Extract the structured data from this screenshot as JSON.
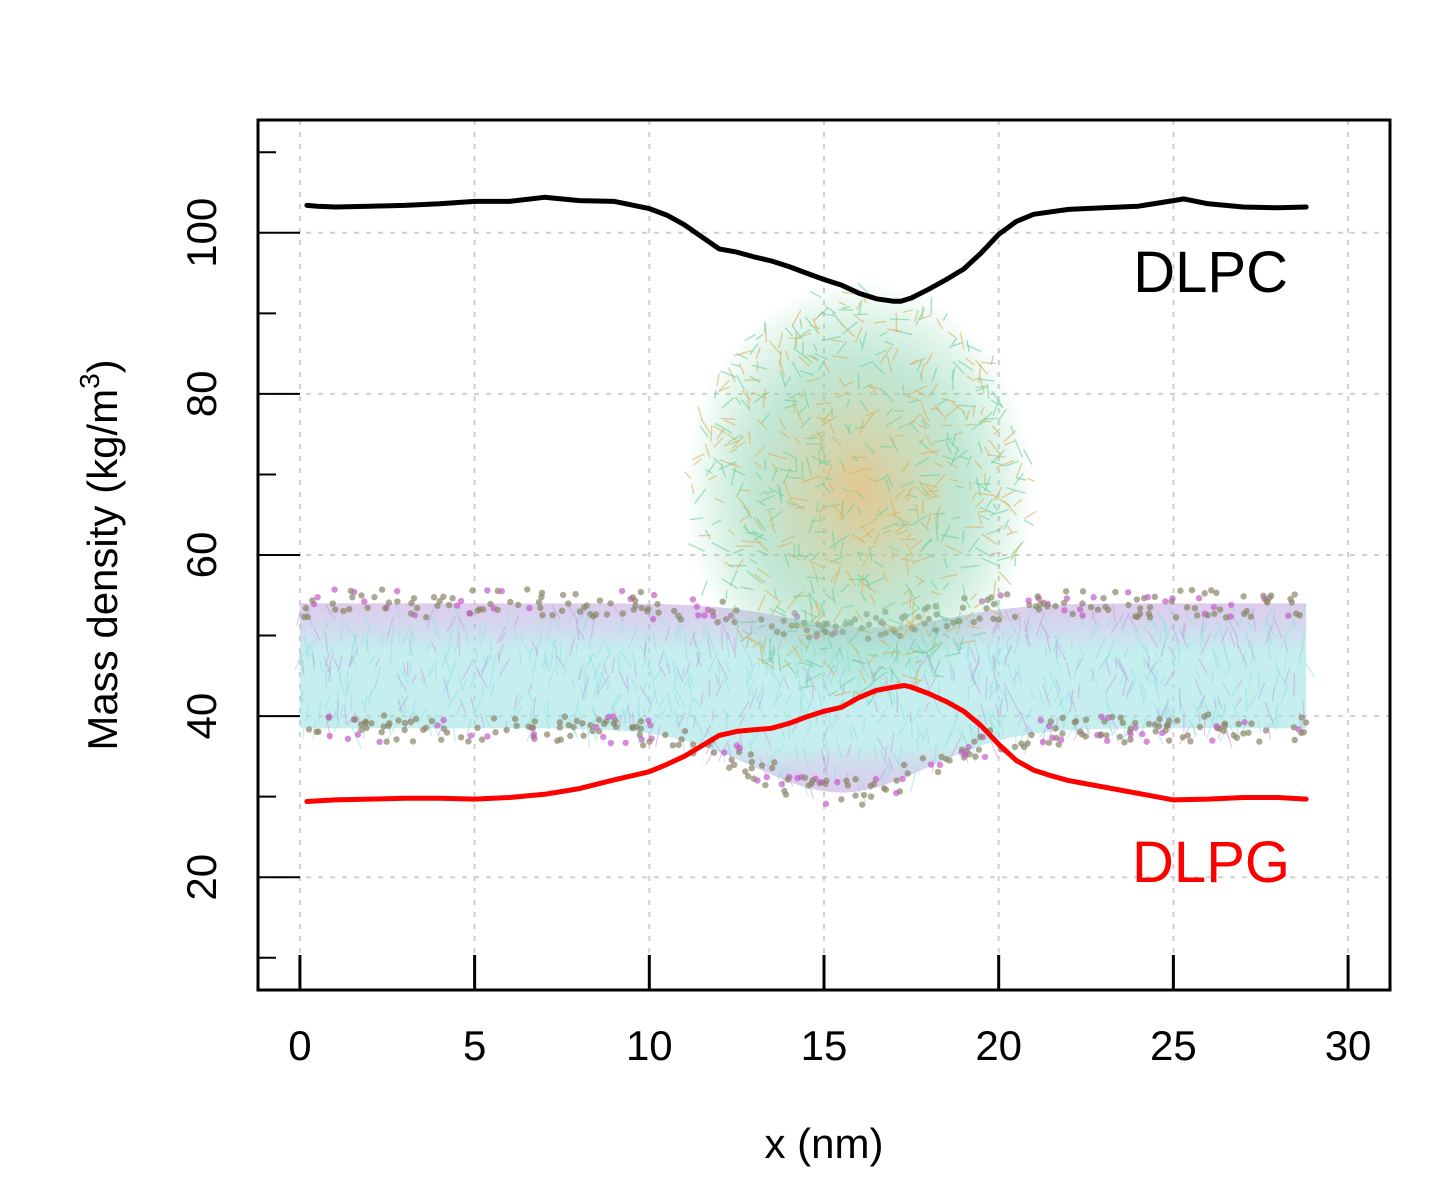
{
  "chart_data": {
    "type": "line",
    "xlabel": "x (nm)",
    "ylabel_main": "Mass density (kg/m",
    "ylabel_sup": "3",
    "ylabel_close": ")",
    "xlim": [
      -1.2,
      31.2
    ],
    "ylim": [
      6,
      114
    ],
    "x_ticks": [
      0,
      5,
      10,
      15,
      20,
      25,
      30
    ],
    "x_tick_labels": [
      "0",
      "5",
      "10",
      "15",
      "20",
      "25",
      "30"
    ],
    "y_ticks": [
      20,
      40,
      60,
      80,
      100
    ],
    "y_tick_labels": [
      "20",
      "40",
      "60",
      "80",
      "100"
    ],
    "y_minor_ticks": [
      10,
      30,
      50,
      70,
      90,
      110
    ],
    "grid": true,
    "background_image": "membrane-protein-snapshot",
    "series": [
      {
        "name": "DLPC",
        "color": "#000000",
        "label_text": "DLPC",
        "x": [
          0.2,
          0.5,
          1,
          2,
          3,
          4,
          5,
          6,
          7,
          8,
          9,
          10,
          10.5,
          11,
          11.5,
          12,
          12.5,
          13,
          13.5,
          14,
          14.5,
          15,
          15.5,
          16,
          16.5,
          17,
          17.2,
          17.5,
          18,
          18.5,
          19,
          19.5,
          20,
          20.5,
          21,
          21.5,
          22,
          23,
          24,
          25,
          25.3,
          26,
          27,
          28,
          28.8
        ],
        "y": [
          103.4,
          103.3,
          103.2,
          103.3,
          103.4,
          103.6,
          103.9,
          103.9,
          104.4,
          104.0,
          103.9,
          103.0,
          102.2,
          101.0,
          99.5,
          98.0,
          97.6,
          97.0,
          96.5,
          95.8,
          95.0,
          94.2,
          93.5,
          92.5,
          91.8,
          91.5,
          91.5,
          91.9,
          93.0,
          94.2,
          95.5,
          97.5,
          99.8,
          101.4,
          102.3,
          102.6,
          102.9,
          103.1,
          103.3,
          104.0,
          104.2,
          103.6,
          103.2,
          103.1,
          103.2
        ]
      },
      {
        "name": "DLPG",
        "color": "#ff0000",
        "label_text": "DLPG",
        "x": [
          0.2,
          1,
          2,
          3,
          4,
          5,
          6,
          7,
          8,
          9,
          10,
          10.5,
          11,
          11.5,
          12,
          12.5,
          13,
          13.5,
          14,
          14.5,
          15,
          15.5,
          16,
          16.5,
          17,
          17.3,
          17.5,
          18,
          18.5,
          19,
          19.5,
          20,
          20.5,
          21,
          21.5,
          22,
          23,
          24,
          25,
          26,
          27,
          28,
          28.8
        ],
        "y": [
          29.4,
          29.6,
          29.7,
          29.8,
          29.8,
          29.7,
          29.9,
          30.3,
          31.0,
          32.1,
          33.1,
          34.0,
          35.0,
          36.3,
          37.6,
          38.1,
          38.3,
          38.5,
          39.1,
          39.9,
          40.6,
          41.1,
          42.3,
          43.2,
          43.6,
          43.8,
          43.6,
          42.8,
          41.8,
          40.6,
          38.8,
          36.5,
          34.5,
          33.3,
          32.6,
          32.0,
          31.2,
          30.4,
          29.6,
          29.7,
          29.9,
          29.9,
          29.7
        ]
      }
    ]
  }
}
